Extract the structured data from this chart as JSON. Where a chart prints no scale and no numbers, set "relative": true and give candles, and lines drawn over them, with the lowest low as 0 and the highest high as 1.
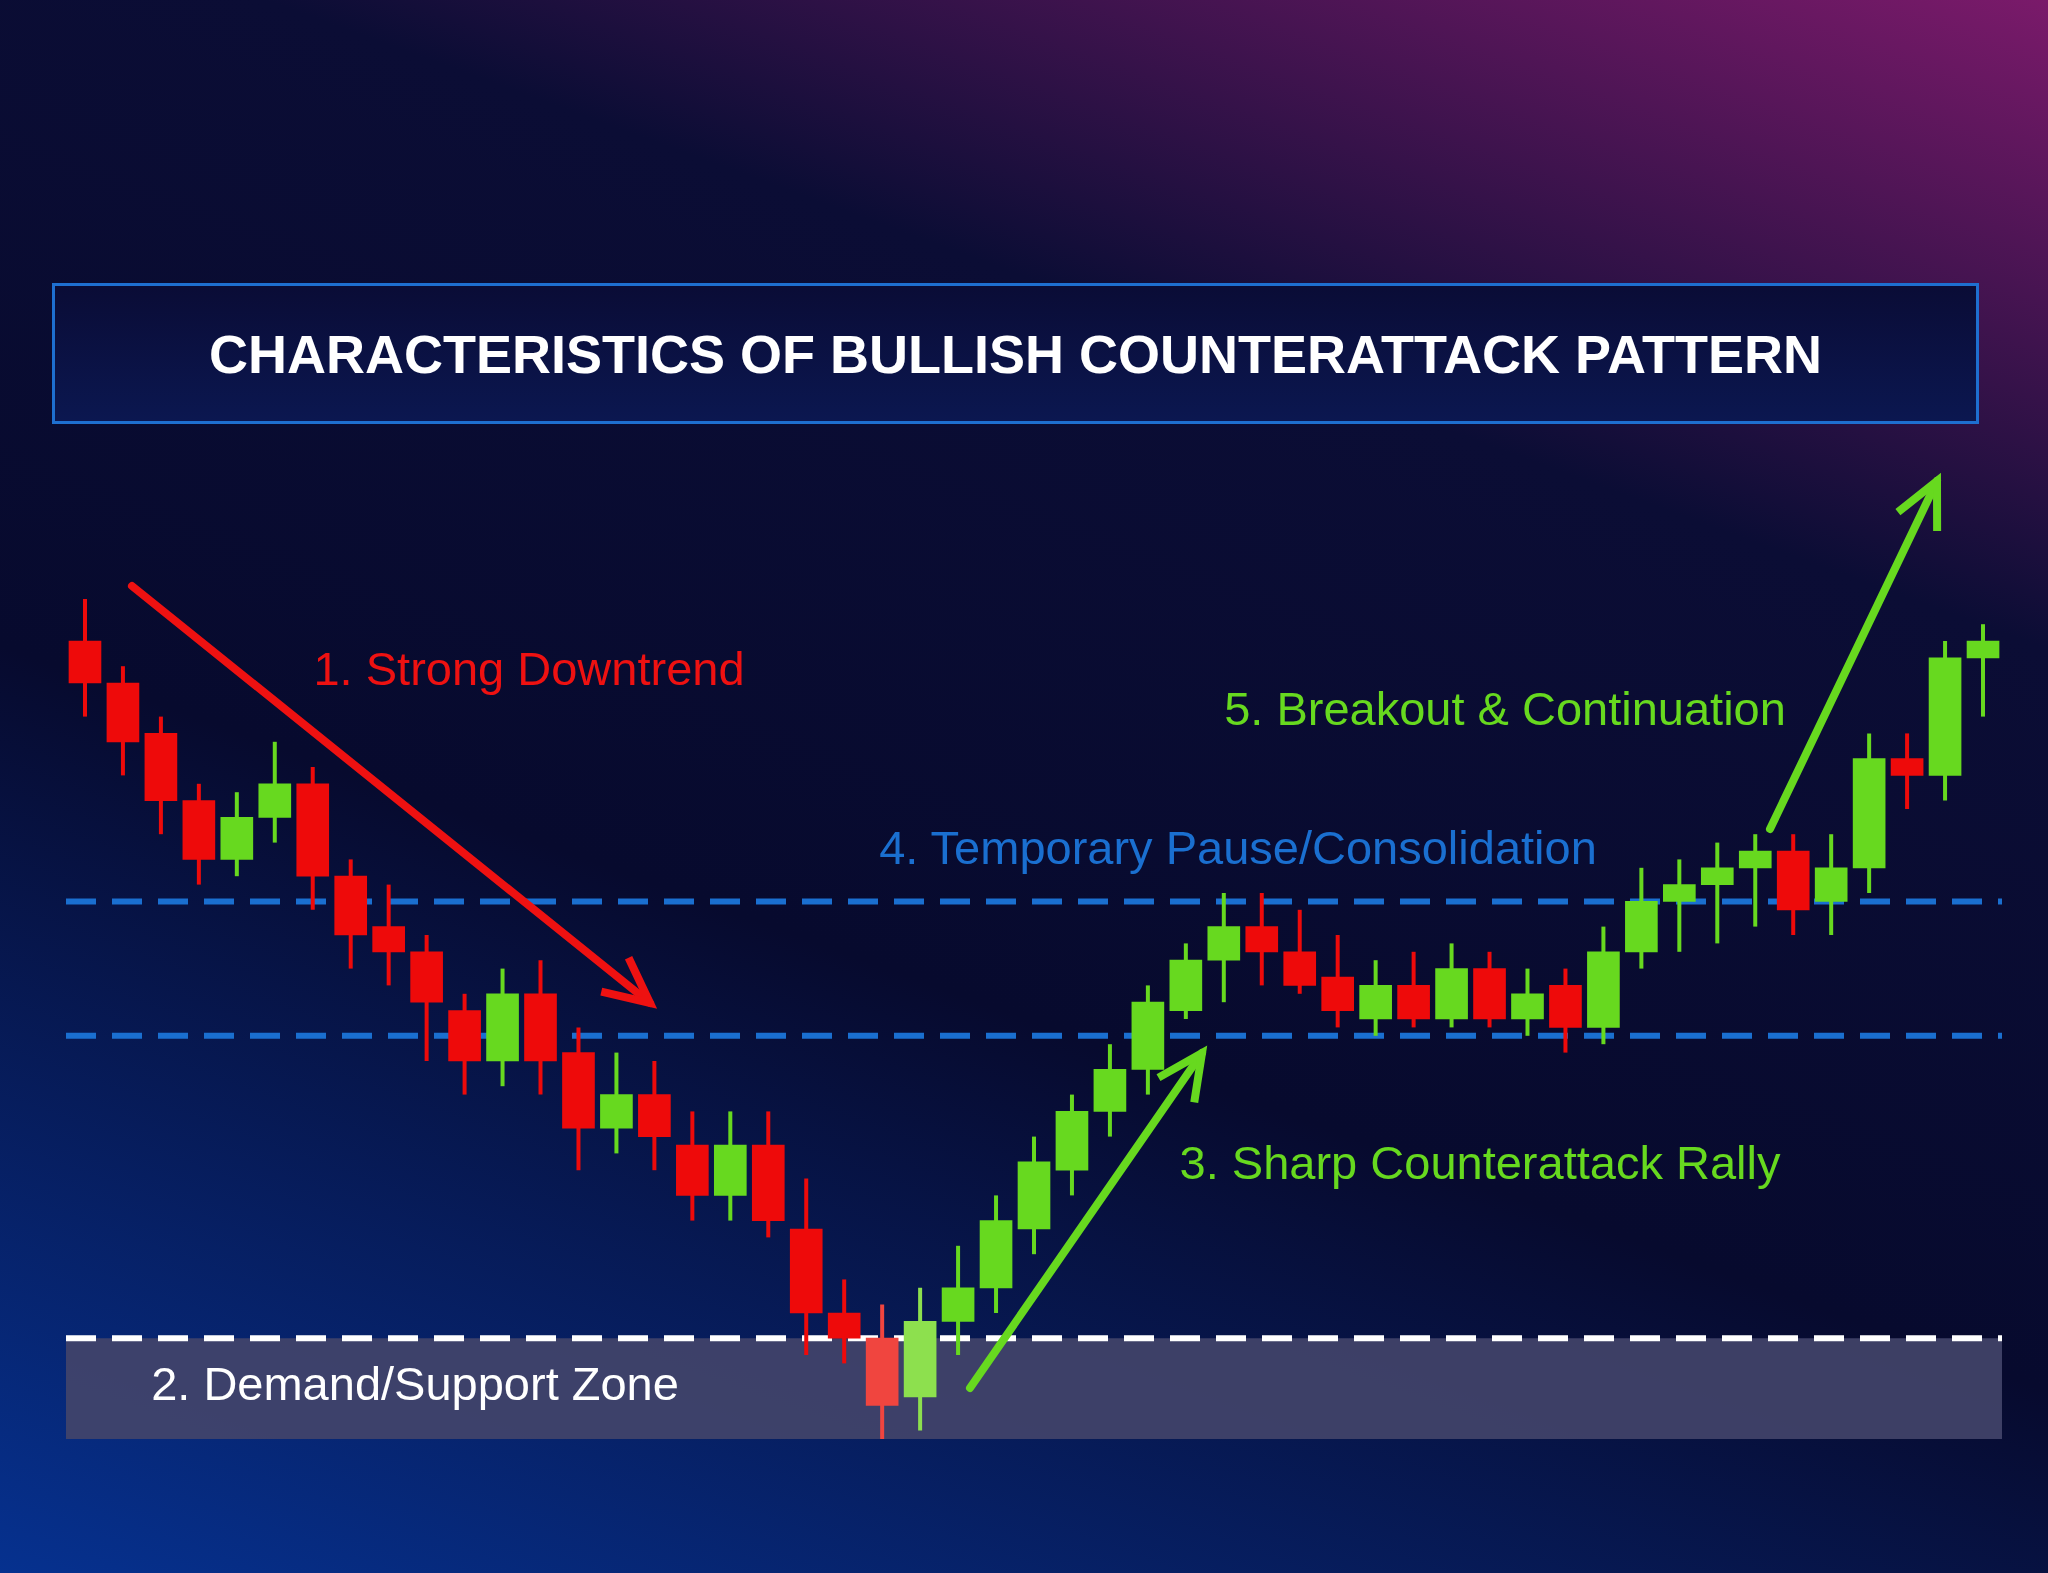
{
  "chart_data": {
    "type": "candlestick",
    "title": "CHARACTERISTICS OF BULLISH COUNTERATTACK PATTERN",
    "relative": true,
    "categories": [
      null,
      null,
      null,
      null,
      null,
      null,
      null,
      null,
      null,
      null,
      null,
      null,
      null,
      null,
      null,
      null,
      null,
      null,
      null,
      null,
      null,
      null,
      null,
      null,
      null,
      null,
      null,
      null,
      null,
      null,
      null,
      null,
      null,
      null,
      null,
      null,
      null,
      null,
      null,
      null,
      null,
      null,
      null,
      null,
      null,
      null,
      null,
      null,
      null,
      null,
      null
    ],
    "ohlc": [
      [
        0.95,
        1.0,
        0.86,
        0.9
      ],
      [
        0.9,
        0.92,
        0.79,
        0.83
      ],
      [
        0.84,
        0.86,
        0.72,
        0.76
      ],
      [
        0.76,
        0.78,
        0.66,
        0.69
      ],
      [
        0.69,
        0.77,
        0.67,
        0.74
      ],
      [
        0.74,
        0.83,
        0.71,
        0.78
      ],
      [
        0.78,
        0.8,
        0.63,
        0.67
      ],
      [
        0.67,
        0.69,
        0.56,
        0.6
      ],
      [
        0.61,
        0.66,
        0.54,
        0.58
      ],
      [
        0.58,
        0.6,
        0.45,
        0.52
      ],
      [
        0.51,
        0.53,
        0.41,
        0.45
      ],
      [
        0.45,
        0.56,
        0.42,
        0.53
      ],
      [
        0.53,
        0.57,
        0.41,
        0.45
      ],
      [
        0.46,
        0.49,
        0.32,
        0.37
      ],
      [
        0.37,
        0.46,
        0.34,
        0.41
      ],
      [
        0.41,
        0.45,
        0.32,
        0.36
      ],
      [
        0.35,
        0.39,
        0.26,
        0.29
      ],
      [
        0.29,
        0.39,
        0.26,
        0.35
      ],
      [
        0.35,
        0.39,
        0.24,
        0.26
      ],
      [
        0.25,
        0.31,
        0.1,
        0.15
      ],
      [
        0.15,
        0.19,
        0.09,
        0.12
      ],
      [
        0.12,
        0.16,
        0.0,
        0.04
      ],
      [
        0.05,
        0.18,
        0.01,
        0.14
      ],
      [
        0.14,
        0.23,
        0.1,
        0.18
      ],
      [
        0.18,
        0.29,
        0.15,
        0.26
      ],
      [
        0.25,
        0.36,
        0.22,
        0.33
      ],
      [
        0.32,
        0.41,
        0.29,
        0.39
      ],
      [
        0.39,
        0.47,
        0.36,
        0.44
      ],
      [
        0.44,
        0.54,
        0.41,
        0.52
      ],
      [
        0.51,
        0.59,
        0.5,
        0.57
      ],
      [
        0.57,
        0.65,
        0.52,
        0.61
      ],
      [
        0.61,
        0.65,
        0.54,
        0.58
      ],
      [
        0.58,
        0.63,
        0.53,
        0.54
      ],
      [
        0.55,
        0.6,
        0.49,
        0.51
      ],
      [
        0.5,
        0.57,
        0.48,
        0.54
      ],
      [
        0.54,
        0.58,
        0.49,
        0.5
      ],
      [
        0.5,
        0.59,
        0.49,
        0.56
      ],
      [
        0.56,
        0.58,
        0.49,
        0.5
      ],
      [
        0.5,
        0.56,
        0.48,
        0.53
      ],
      [
        0.54,
        0.56,
        0.46,
        0.49
      ],
      [
        0.49,
        0.61,
        0.47,
        0.58
      ],
      [
        0.58,
        0.68,
        0.56,
        0.64
      ],
      [
        0.64,
        0.69,
        0.58,
        0.66
      ],
      [
        0.66,
        0.71,
        0.59,
        0.68
      ],
      [
        0.68,
        0.72,
        0.61,
        0.7
      ],
      [
        0.7,
        0.72,
        0.6,
        0.63
      ],
      [
        0.64,
        0.72,
        0.6,
        0.68
      ],
      [
        0.68,
        0.84,
        0.65,
        0.81
      ],
      [
        0.81,
        0.84,
        0.75,
        0.79
      ],
      [
        0.79,
        0.95,
        0.76,
        0.93
      ],
      [
        0.93,
        0.97,
        0.86,
        0.95
      ]
    ],
    "colors": [
      "#ee0a0a",
      "#ee0a0a",
      "#ee0a0a",
      "#ee0a0a",
      "#67d91f",
      "#67d91f",
      "#ee0a0a",
      "#ee0a0a",
      "#ee0a0a",
      "#ee0a0a",
      "#ee0a0a",
      "#67d91f",
      "#ee0a0a",
      "#ee0a0a",
      "#67d91f",
      "#ee0a0a",
      "#ee0a0a",
      "#67d91f",
      "#ee0a0a",
      "#ee0a0a",
      "#ee0a0a",
      "#f0453f",
      "#8de04e",
      "#67d91f",
      "#67d91f",
      "#67d91f",
      "#67d91f",
      "#67d91f",
      "#67d91f",
      "#67d91f",
      "#67d91f",
      "#ee0a0a",
      "#ee0a0a",
      "#ee0a0a",
      "#67d91f",
      "#ee0a0a",
      "#67d91f",
      "#ee0a0a",
      "#67d91f",
      "#ee0a0a",
      "#67d91f",
      "#67d91f",
      "#67d91f",
      "#67d91f",
      "#67d91f",
      "#ee0a0a",
      "#67d91f",
      "#67d91f",
      "#ee0a0a",
      "#67d91f",
      "#67d91f"
    ],
    "ref_lines": [
      {
        "axis": "y",
        "value": 0.12,
        "color": "#ffffff",
        "line_style": "dashed"
      },
      {
        "axis": "y",
        "value": 0.64,
        "label": "4. Temporary Pause/Consolidation",
        "color": "#1a6fd0",
        "line_style": "dashed"
      },
      {
        "axis": "y",
        "value": 0.48,
        "color": "#1a6fd0",
        "line_style": "dashed"
      }
    ],
    "bands": [
      {
        "axis": "y",
        "from": 0,
        "to": 0.12,
        "label": "2. Demand/Support Zone",
        "color": "#44456a"
      }
    ],
    "annotations": [
      "1. Strong Downtrend",
      "3. Sharp Counterattack Rally",
      "5. Breakout & Continuation"
    ],
    "legend": false
  }
}
